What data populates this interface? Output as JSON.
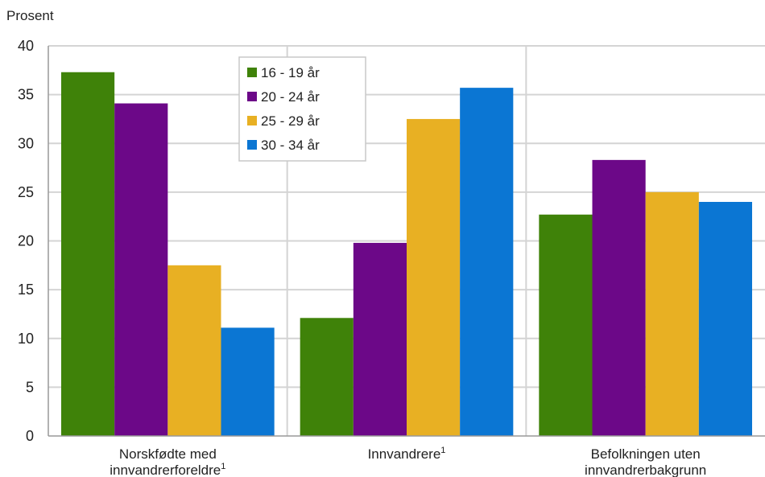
{
  "chart_data": {
    "type": "bar",
    "ylabel": "Prosent",
    "ylim": [
      0,
      40
    ],
    "yticks": [
      0,
      5,
      10,
      15,
      20,
      25,
      30,
      35,
      40
    ],
    "grid": true,
    "legend_position": "top-center",
    "categories": [
      {
        "lines": [
          "Norskfødte med",
          "innvandrerforeldre"
        ],
        "sup": "1"
      },
      {
        "lines": [
          "Innvandrere"
        ],
        "sup": "1"
      },
      {
        "lines": [
          "Befolkningen uten",
          "innvandrerbakgrunn"
        ],
        "sup": ""
      }
    ],
    "series": [
      {
        "name": "16 - 19 år",
        "color": "#3f8209",
        "values": [
          37.3,
          12.1,
          22.7
        ]
      },
      {
        "name": "20 - 24 år",
        "color": "#6c0888",
        "values": [
          34.1,
          19.8,
          28.3
        ]
      },
      {
        "name": "25 - 29 år",
        "color": "#e8b023",
        "values": [
          17.5,
          32.5,
          25.0
        ]
      },
      {
        "name": "30 - 34 år",
        "color": "#0b76d3",
        "values": [
          11.1,
          35.7,
          24.0
        ]
      }
    ]
  }
}
